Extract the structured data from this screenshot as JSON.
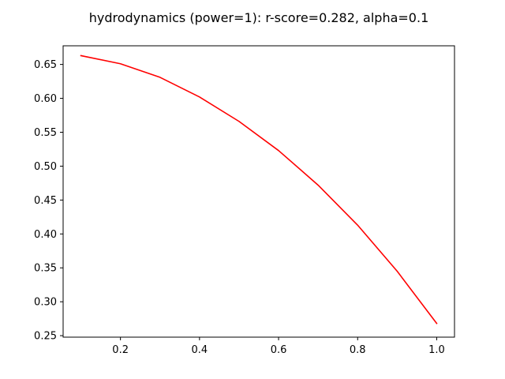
{
  "chart_data": {
    "type": "line",
    "title": "hydrodynamics (power=1): r-score=0.282, alpha=0.1",
    "xlabel": "",
    "ylabel": "",
    "xlim": [
      0.055,
      1.045
    ],
    "ylim": [
      0.2478,
      0.6775
    ],
    "xticks": [
      0.2,
      0.4,
      0.6,
      0.8,
      1.0
    ],
    "xtick_labels": [
      "0.2",
      "0.4",
      "0.6",
      "0.8",
      "1.0"
    ],
    "yticks": [
      0.25,
      0.3,
      0.35,
      0.4,
      0.45,
      0.5,
      0.55,
      0.6,
      0.65
    ],
    "ytick_labels": [
      "0.25",
      "0.30",
      "0.35",
      "0.40",
      "0.45",
      "0.50",
      "0.55",
      "0.60",
      "0.65"
    ],
    "grid": false,
    "legend": "none",
    "series": [
      {
        "color": "#ff0000",
        "x": [
          0.1,
          0.2,
          0.3,
          0.4,
          0.5,
          0.6,
          0.7,
          0.8,
          0.9,
          1.0
        ],
        "y": [
          0.663,
          0.651,
          0.631,
          0.602,
          0.566,
          0.523,
          0.472,
          0.413,
          0.345,
          0.268
        ]
      }
    ]
  }
}
